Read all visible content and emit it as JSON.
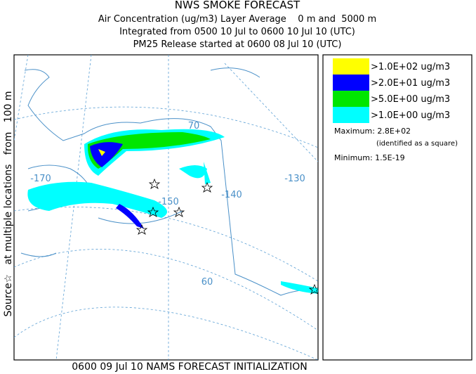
{
  "header": {
    "title": "NWS SMOKE FORECAST",
    "lines": [
      "Air Concentration (ug/m3) Layer Average    0 m and  5000 m",
      "Integrated from 0500 10 Jul to 0600 10 Jul 10 (UTC)",
      "PM25 Release started at 0600 08 Jul 10 (UTC)"
    ]
  },
  "side_label": "Source☆   at multiple locations   from   100 m",
  "legend": {
    "items": [
      {
        "label": ">1.0E+02 ug/m3",
        "color": "#ffff00"
      },
      {
        "label": ">2.0E+01 ug/m3",
        "color": "#0000ff"
      },
      {
        "label": ">5.0E+00 ug/m3",
        "color": "#00e600"
      },
      {
        "label": ">1.0E+00 ug/m3",
        "color": "#00ffff"
      }
    ]
  },
  "stats": {
    "maximum": "Maximum: 2.8E+02",
    "maximum_note": "(identified as a square)",
    "minimum": "Minimum: 1.5E-19"
  },
  "map": {
    "labels": [
      "-170",
      "-140",
      "-130",
      "70",
      "60",
      "-150"
    ]
  },
  "footer": "0600 09 Jul 10 NAMS FORECAST INITIALIZATION"
}
